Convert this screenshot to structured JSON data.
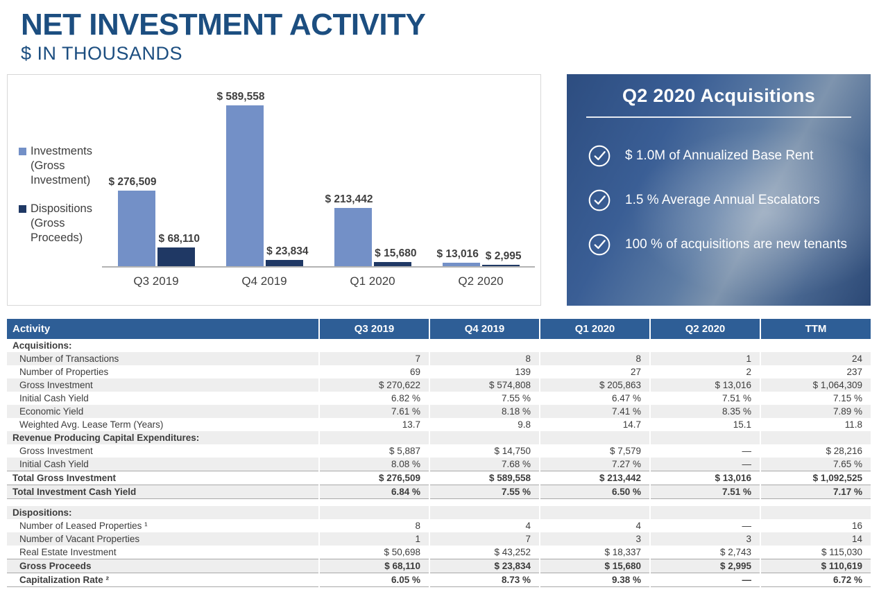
{
  "header": {
    "title": "NET INVESTMENT ACTIVITY",
    "subtitle": "$ IN THOUSANDS"
  },
  "colors": {
    "title_text": "#1c4e80",
    "table_header_bg": "#2e5e96",
    "row_shade": "#eeeeee",
    "bar_investments": "#7390c7",
    "bar_dispositions": "#1f3864",
    "callout_bg": "#3a5e95"
  },
  "chart_data": {
    "type": "bar",
    "title": "",
    "xlabel": "",
    "ylabel": "",
    "grid": false,
    "legend_position": "left",
    "ylim": [
      0,
      600000
    ],
    "categories": [
      "Q3 2019",
      "Q4 2019",
      "Q1 2020",
      "Q2 2020"
    ],
    "series": [
      {
        "name": "Investments (Gross Investment)",
        "color": "#7390c7",
        "values": [
          276509,
          589558,
          213442,
          13016
        ],
        "labels": [
          "$ 276,509",
          "$ 589,558",
          "$ 213,442",
          "$ 13,016"
        ]
      },
      {
        "name": "Dispositions (Gross Proceeds)",
        "color": "#1f3864",
        "values": [
          68110,
          23834,
          15680,
          2995
        ],
        "labels": [
          "$ 68,110",
          "$ 23,834",
          "$ 15,680",
          "$ 2,995"
        ]
      }
    ]
  },
  "callout": {
    "title": "Q2 2020 Acquisitions",
    "items": [
      "$ 1.0M of Annualized Base Rent",
      "1.5 % Average Annual Escalators",
      "100 % of acquisitions are new tenants"
    ]
  },
  "table": {
    "columns": [
      "Activity",
      "Q3 2019",
      "Q4 2019",
      "Q1 2020",
      "Q2 2020",
      "TTM"
    ],
    "rows": [
      {
        "type": "section",
        "indent": false,
        "label": "Acquisitions:",
        "values": [
          "",
          "",
          "",
          "",
          ""
        ]
      },
      {
        "type": "data",
        "indent": true,
        "label": "Number of Transactions",
        "values": [
          "7",
          "8",
          "8",
          "1",
          "24"
        ]
      },
      {
        "type": "data",
        "indent": true,
        "label": "Number of Properties",
        "values": [
          "69",
          "139",
          "27",
          "2",
          "237"
        ]
      },
      {
        "type": "data",
        "indent": true,
        "label": "Gross Investment",
        "values": [
          "$ 270,622",
          "$ 574,808",
          "$ 205,863",
          "$ 13,016",
          "$ 1,064,309"
        ]
      },
      {
        "type": "data",
        "indent": true,
        "label": "Initial Cash Yield",
        "values": [
          "6.82 %",
          "7.55 %",
          "6.47 %",
          "7.51 %",
          "7.15 %"
        ]
      },
      {
        "type": "data",
        "indent": true,
        "label": "Economic Yield",
        "values": [
          "7.61 %",
          "8.18 %",
          "7.41 %",
          "8.35 %",
          "7.89 %"
        ]
      },
      {
        "type": "data",
        "indent": true,
        "label": "Weighted Avg. Lease Term (Years)",
        "values": [
          "13.7",
          "9.8",
          "14.7",
          "15.1",
          "11.8"
        ]
      },
      {
        "type": "section",
        "indent": false,
        "label": "Revenue Producing Capital Expenditures:",
        "values": [
          "",
          "",
          "",
          "",
          ""
        ]
      },
      {
        "type": "data",
        "indent": true,
        "label": "Gross Investment",
        "values": [
          "$ 5,887",
          "$ 14,750",
          "$ 7,579",
          "—",
          "$ 28,216"
        ]
      },
      {
        "type": "data",
        "indent": true,
        "label": "Initial Cash Yield",
        "values": [
          "8.08 %",
          "7.68 %",
          "7.27 %",
          "—",
          "7.65 %"
        ]
      },
      {
        "type": "total",
        "indent": false,
        "label": "Total Gross Investment",
        "values": [
          "$ 276,509",
          "$ 589,558",
          "$ 213,442",
          "$ 13,016",
          "$ 1,092,525"
        ]
      },
      {
        "type": "total",
        "indent": false,
        "label": "Total Investment Cash Yield",
        "values": [
          "6.84 %",
          "7.55 %",
          "6.50 %",
          "7.51 %",
          "7.17 %"
        ]
      },
      {
        "type": "spacer",
        "indent": false,
        "label": "",
        "values": [
          "",
          "",
          "",
          "",
          ""
        ]
      },
      {
        "type": "section",
        "indent": false,
        "label": "Dispositions:",
        "values": [
          "",
          "",
          "",
          "",
          ""
        ]
      },
      {
        "type": "data",
        "indent": true,
        "label": "Number of Leased Properties ¹",
        "values": [
          "8",
          "4",
          "4",
          "—",
          "16"
        ]
      },
      {
        "type": "data",
        "indent": true,
        "label": "Number of Vacant Properties",
        "values": [
          "1",
          "7",
          "3",
          "3",
          "14"
        ]
      },
      {
        "type": "data",
        "indent": true,
        "label": "Real Estate Investment",
        "values": [
          "$ 50,698",
          "$ 43,252",
          "$ 18,337",
          "$ 2,743",
          "$ 115,030"
        ]
      },
      {
        "type": "total",
        "indent": true,
        "label": "Gross Proceeds",
        "values": [
          "$ 68,110",
          "$ 23,834",
          "$ 15,680",
          "$ 2,995",
          "$ 110,619"
        ]
      },
      {
        "type": "total",
        "indent": true,
        "label": "Capitalization Rate ²",
        "values": [
          "6.05 %",
          "8.73 %",
          "9.38 %",
          "—",
          "6.72 %"
        ]
      }
    ]
  }
}
